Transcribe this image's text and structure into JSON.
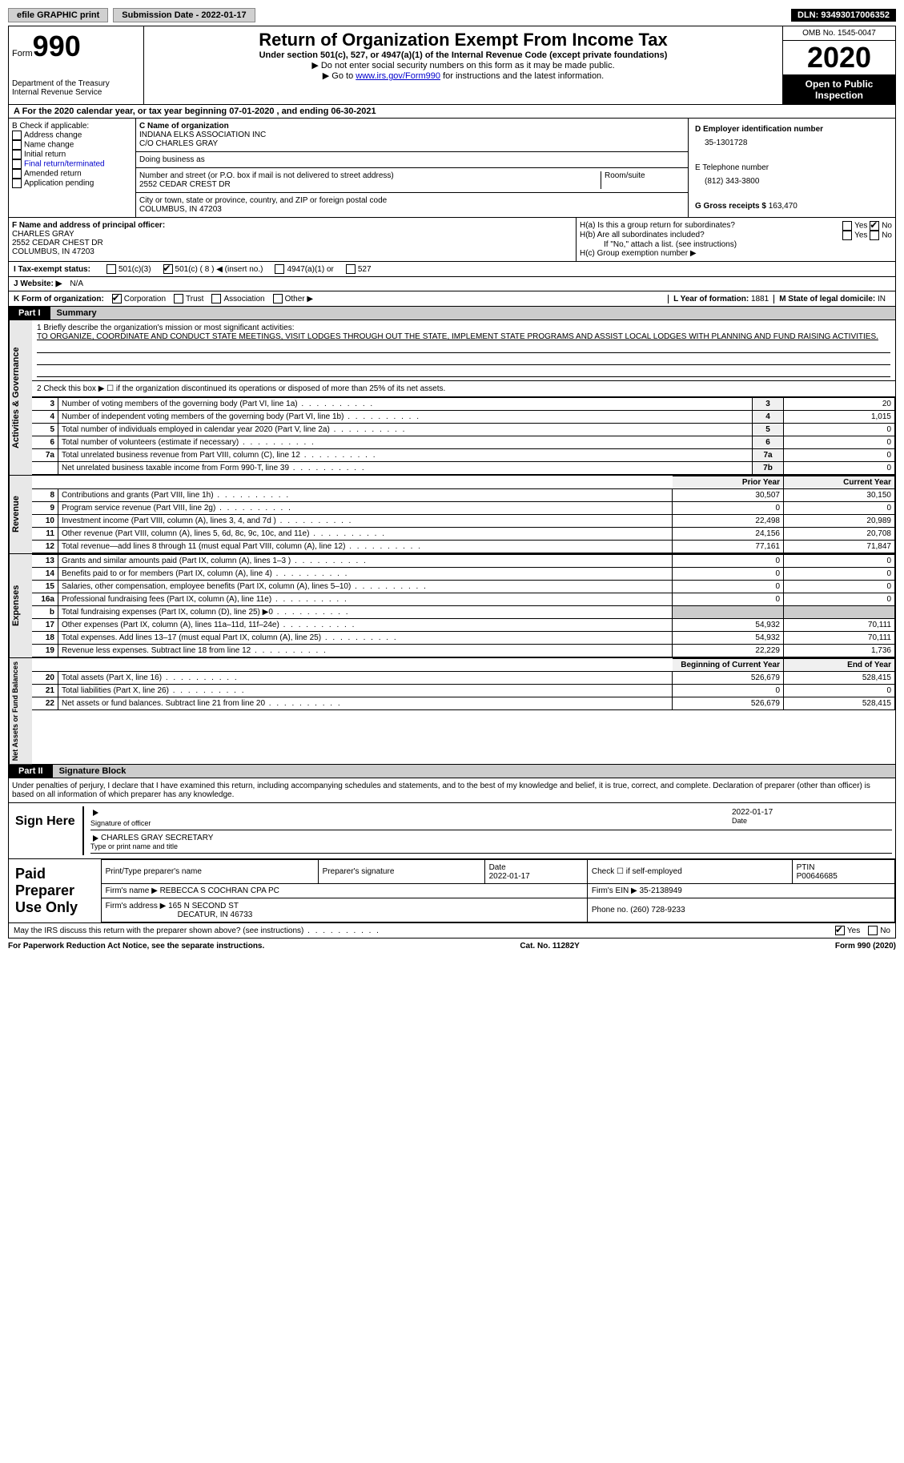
{
  "topbar": {
    "efile": "efile GRAPHIC print",
    "submission": "Submission Date - 2022-01-17",
    "dln": "DLN: 93493017006352"
  },
  "header": {
    "form_label": "Form",
    "form_num": "990",
    "dept": "Department of the Treasury\nInternal Revenue Service",
    "title": "Return of Organization Exempt From Income Tax",
    "sub1": "Under section 501(c), 527, or 4947(a)(1) of the Internal Revenue Code (except private foundations)",
    "sub2": "▶ Do not enter social security numbers on this form as it may be made public.",
    "sub3_pre": "▶ Go to ",
    "sub3_link": "www.irs.gov/Form990",
    "sub3_post": " for instructions and the latest information.",
    "omb": "OMB No. 1545-0047",
    "year": "2020",
    "inspect": "Open to Public Inspection"
  },
  "row_a": "A For the 2020 calendar year, or tax year beginning 07-01-2020   , and ending 06-30-2021",
  "box_b": {
    "title": "B Check if applicable:",
    "items": [
      "Address change",
      "Name change",
      "Initial return",
      "Final return/terminated",
      "Amended return",
      "Application pending"
    ]
  },
  "box_c": {
    "label": "C Name of organization",
    "name": "INDIANA ELKS ASSOCIATION INC",
    "co": "C/O CHARLES GRAY",
    "dba_label": "Doing business as",
    "addr_label": "Number and street (or P.O. box if mail is not delivered to street address)",
    "room_label": "Room/suite",
    "addr": "2552 CEDAR CREST DR",
    "city_label": "City or town, state or province, country, and ZIP or foreign postal code",
    "city": "COLUMBUS, IN  47203"
  },
  "box_d": {
    "ein_label": "D Employer identification number",
    "ein": "35-1301728",
    "tel_label": "E Telephone number",
    "tel": "(812) 343-3800",
    "gross_label": "G Gross receipts $",
    "gross": "163,470"
  },
  "box_f": {
    "label": "F Name and address of principal officer:",
    "name": "CHARLES GRAY",
    "addr1": "2552 CEDAR CHEST DR",
    "addr2": "COLUMBUS, IN  47203"
  },
  "box_h": {
    "a": "H(a)  Is this a group return for subordinates?",
    "b": "H(b)  Are all subordinates included?",
    "note": "If \"No,\" attach a list. (see instructions)",
    "c": "H(c)  Group exemption number ▶"
  },
  "tax_exempt": {
    "label": "I   Tax-exempt status:",
    "opts": [
      "501(c)(3)",
      "501(c) ( 8 ) ◀ (insert no.)",
      "4947(a)(1) or",
      "527"
    ]
  },
  "website": {
    "label": "J   Website: ▶",
    "val": "N/A"
  },
  "form_org": {
    "label": "K Form of organization:",
    "opts": [
      "Corporation",
      "Trust",
      "Association",
      "Other ▶"
    ],
    "year_label": "L Year of formation:",
    "year": "1881",
    "state_label": "M State of legal domicile:",
    "state": "IN"
  },
  "part1": {
    "tab": "Part I",
    "title": "Summary"
  },
  "mission": {
    "label": "1   Briefly describe the organization's mission or most significant activities:",
    "text": "TO ORGANIZE, COORDINATE AND CONDUCT STATE MEETINGS, VISIT LODGES THROUGH OUT THE STATE, IMPLEMENT STATE PROGRAMS AND ASSIST LOCAL LODGES WITH PLANNING AND FUND RAISING ACTIVITIES."
  },
  "line2": "2   Check this box ▶ ☐  if the organization discontinued its operations or disposed of more than 25% of its net assets.",
  "governance": {
    "label": "Activities & Governance",
    "rows": [
      {
        "n": "3",
        "t": "Number of voting members of the governing body (Part VI, line 1a)",
        "k": "3",
        "v": "20"
      },
      {
        "n": "4",
        "t": "Number of independent voting members of the governing body (Part VI, line 1b)",
        "k": "4",
        "v": "1,015"
      },
      {
        "n": "5",
        "t": "Total number of individuals employed in calendar year 2020 (Part V, line 2a)",
        "k": "5",
        "v": "0"
      },
      {
        "n": "6",
        "t": "Total number of volunteers (estimate if necessary)",
        "k": "6",
        "v": "0"
      },
      {
        "n": "7a",
        "t": "Total unrelated business revenue from Part VIII, column (C), line 12",
        "k": "7a",
        "v": "0"
      },
      {
        "n": "",
        "t": "Net unrelated business taxable income from Form 990-T, line 39",
        "k": "7b",
        "v": "0"
      }
    ]
  },
  "cols": {
    "prior": "Prior Year",
    "current": "Current Year",
    "boc": "Beginning of Current Year",
    "eoy": "End of Year"
  },
  "revenue": {
    "label": "Revenue",
    "rows": [
      {
        "n": "8",
        "t": "Contributions and grants (Part VIII, line 1h)",
        "p": "30,507",
        "c": "30,150"
      },
      {
        "n": "9",
        "t": "Program service revenue (Part VIII, line 2g)",
        "p": "0",
        "c": "0"
      },
      {
        "n": "10",
        "t": "Investment income (Part VIII, column (A), lines 3, 4, and 7d )",
        "p": "22,498",
        "c": "20,989"
      },
      {
        "n": "11",
        "t": "Other revenue (Part VIII, column (A), lines 5, 6d, 8c, 9c, 10c, and 11e)",
        "p": "24,156",
        "c": "20,708"
      },
      {
        "n": "12",
        "t": "Total revenue—add lines 8 through 11 (must equal Part VIII, column (A), line 12)",
        "p": "77,161",
        "c": "71,847"
      }
    ]
  },
  "expenses": {
    "label": "Expenses",
    "rows": [
      {
        "n": "13",
        "t": "Grants and similar amounts paid (Part IX, column (A), lines 1–3 )",
        "p": "0",
        "c": "0"
      },
      {
        "n": "14",
        "t": "Benefits paid to or for members (Part IX, column (A), line 4)",
        "p": "0",
        "c": "0"
      },
      {
        "n": "15",
        "t": "Salaries, other compensation, employee benefits (Part IX, column (A), lines 5–10)",
        "p": "0",
        "c": "0"
      },
      {
        "n": "16a",
        "t": "Professional fundraising fees (Part IX, column (A), line 11e)",
        "p": "0",
        "c": "0"
      },
      {
        "n": "b",
        "t": "Total fundraising expenses (Part IX, column (D), line 25) ▶0",
        "p": "",
        "c": "",
        "shaded": true
      },
      {
        "n": "17",
        "t": "Other expenses (Part IX, column (A), lines 11a–11d, 11f–24e)",
        "p": "54,932",
        "c": "70,111"
      },
      {
        "n": "18",
        "t": "Total expenses. Add lines 13–17 (must equal Part IX, column (A), line 25)",
        "p": "54,932",
        "c": "70,111"
      },
      {
        "n": "19",
        "t": "Revenue less expenses. Subtract line 18 from line 12",
        "p": "22,229",
        "c": "1,736"
      }
    ]
  },
  "netassets": {
    "label": "Net Assets or Fund Balances",
    "rows": [
      {
        "n": "20",
        "t": "Total assets (Part X, line 16)",
        "p": "526,679",
        "c": "528,415"
      },
      {
        "n": "21",
        "t": "Total liabilities (Part X, line 26)",
        "p": "0",
        "c": "0"
      },
      {
        "n": "22",
        "t": "Net assets or fund balances. Subtract line 21 from line 20",
        "p": "526,679",
        "c": "528,415"
      }
    ]
  },
  "part2": {
    "tab": "Part II",
    "title": "Signature Block"
  },
  "penalty": "Under penalties of perjury, I declare that I have examined this return, including accompanying schedules and statements, and to the best of my knowledge and belief, it is true, correct, and complete. Declaration of preparer (other than officer) is based on all information of which preparer has any knowledge.",
  "sign": {
    "here": "Sign Here",
    "sig_label": "Signature of officer",
    "date_label": "Date",
    "date": "2022-01-17",
    "name": "CHARLES GRAY  SECRETARY",
    "name_label": "Type or print name and title"
  },
  "preparer": {
    "label": "Paid Preparer Use Only",
    "h1": "Print/Type preparer's name",
    "h2": "Preparer's signature",
    "h3": "Date",
    "h3v": "2022-01-17",
    "h4": "Check ☐ if self-employed",
    "h5": "PTIN",
    "h5v": "P00646685",
    "firm_label": "Firm's name    ▶",
    "firm": "REBECCA S COCHRAN CPA PC",
    "ein_label": "Firm's EIN ▶",
    "ein": "35-2138949",
    "addr_label": "Firm's address ▶",
    "addr": "165 N SECOND ST",
    "city": "DECATUR, IN  46733",
    "phone_label": "Phone no.",
    "phone": "(260) 728-9233"
  },
  "discuss": "May the IRS discuss this return with the preparer shown above? (see instructions)",
  "footer": {
    "l": "For Paperwork Reduction Act Notice, see the separate instructions.",
    "m": "Cat. No. 11282Y",
    "r": "Form 990 (2020)"
  },
  "yesno": {
    "yes": "Yes",
    "no": "No"
  }
}
